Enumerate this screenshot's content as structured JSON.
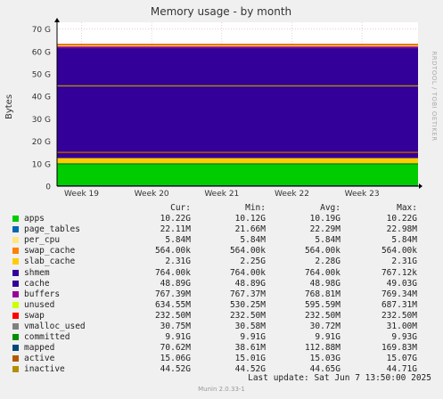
{
  "chart_data": {
    "type": "area",
    "title": "Memory usage - by month",
    "ylabel": "Bytes",
    "watermark": "RRDTOOL / TOBI OETIKER",
    "ylim": [
      0,
      73
    ],
    "y_ticks": [
      "0",
      "10 G",
      "20 G",
      "30 G",
      "40 G",
      "50 G",
      "60 G",
      "70 G"
    ],
    "y_tick_values": [
      0,
      10,
      20,
      30,
      40,
      50,
      60,
      70
    ],
    "x_ticks": [
      "Week 19",
      "Week 20",
      "Week 21",
      "Week 22",
      "Week 23"
    ],
    "column_headers": [
      "Cur:",
      "Min:",
      "Avg:",
      "Max:"
    ],
    "unit": "G",
    "series": [
      {
        "name": "apps",
        "color": "#00cc00",
        "kind": "stack",
        "cur": "10.22G",
        "min": "10.12G",
        "avg": "10.19G",
        "max": "10.22G",
        "value": 10.19
      },
      {
        "name": "page_tables",
        "color": "#0066b3",
        "kind": "stack",
        "cur": "22.11M",
        "min": "21.66M",
        "avg": "22.29M",
        "max": "22.98M",
        "value": 0.022
      },
      {
        "name": "per_cpu",
        "color": "#ffe680",
        "kind": "stack",
        "cur": "5.84M",
        "min": "5.84M",
        "avg": "5.84M",
        "max": "5.84M",
        "value": 0.006
      },
      {
        "name": "swap_cache",
        "color": "#ff8000",
        "kind": "stack",
        "cur": "564.00k",
        "min": "564.00k",
        "avg": "564.00k",
        "max": "564.00k",
        "value": 0.0006
      },
      {
        "name": "slab_cache",
        "color": "#ffcc00",
        "kind": "stack",
        "cur": "2.31G",
        "min": "2.25G",
        "avg": "2.28G",
        "max": "2.31G",
        "value": 2.28
      },
      {
        "name": "shmem",
        "color": "#330099",
        "kind": "stack",
        "cur": "764.00k",
        "min": "764.00k",
        "avg": "764.00k",
        "max": "767.12k",
        "value": 0.0008
      },
      {
        "name": "cache",
        "color": "#330099",
        "kind": "stack",
        "cur": "48.89G",
        "min": "48.89G",
        "avg": "48.98G",
        "max": "49.03G",
        "value": 48.98
      },
      {
        "name": "buffers",
        "color": "#990099",
        "kind": "stack",
        "cur": "767.39M",
        "min": "767.37M",
        "avg": "768.81M",
        "max": "769.34M",
        "value": 0.77
      },
      {
        "name": "unused",
        "color": "#ccff00",
        "kind": "stack",
        "cur": "634.55M",
        "min": "530.25M",
        "avg": "595.59M",
        "max": "687.31M",
        "value": 0.6
      },
      {
        "name": "swap",
        "color": "#ff0000",
        "kind": "stack",
        "cur": "232.50M",
        "min": "232.50M",
        "avg": "232.50M",
        "max": "232.50M",
        "value": 0.23
      },
      {
        "name": "vmalloc_used",
        "color": "#808080",
        "kind": "line",
        "cur": "30.75M",
        "min": "30.58M",
        "avg": "30.72M",
        "max": "31.00M",
        "value": 0.031
      },
      {
        "name": "committed",
        "color": "#008f00",
        "kind": "line",
        "cur": "9.91G",
        "min": "9.91G",
        "avg": "9.91G",
        "max": "9.93G",
        "value": 9.91
      },
      {
        "name": "mapped",
        "color": "#00487d",
        "kind": "line",
        "cur": "70.62M",
        "min": "38.61M",
        "avg": "112.88M",
        "max": "169.83M",
        "value": 0.11
      },
      {
        "name": "active",
        "color": "#b35a00",
        "kind": "line",
        "cur": "15.06G",
        "min": "15.01G",
        "avg": "15.03G",
        "max": "15.07G",
        "value": 15.03
      },
      {
        "name": "inactive",
        "color": "#b38f00",
        "kind": "line",
        "cur": "44.52G",
        "min": "44.52G",
        "avg": "44.65G",
        "max": "44.71G",
        "value": 44.65
      }
    ]
  },
  "last_update": "Last update: Sat Jun  7 13:50:00 2025",
  "footer": "Munin 2.0.33-1"
}
